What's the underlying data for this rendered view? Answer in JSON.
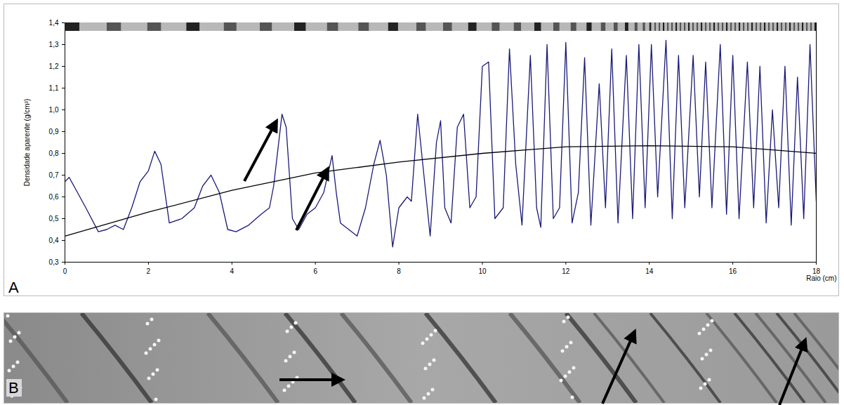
{
  "chart_data": {
    "type": "line",
    "x_label": "Raio (cm)",
    "y_label": "Densidade aparente (g/cm³)",
    "annotations": [
      {
        "text": "A"
      },
      {
        "text": "B"
      }
    ],
    "xlim": [
      0,
      18
    ],
    "xticks": [
      0,
      2,
      4,
      6,
      8,
      10,
      12,
      14,
      16,
      18
    ],
    "ylim": [
      0.3,
      1.4
    ],
    "yticks": [
      {
        "value": 0.3,
        "label": "0,3"
      },
      {
        "value": 0.4,
        "label": "0,4"
      },
      {
        "value": 0.5,
        "label": "0,5"
      },
      {
        "value": 0.6,
        "label": "0,6"
      },
      {
        "value": 0.7,
        "label": "0,7"
      },
      {
        "value": 0.8,
        "label": "0,8"
      },
      {
        "value": 0.9,
        "label": "0,9"
      },
      {
        "value": 1.0,
        "label": "1,0"
      },
      {
        "value": 1.1,
        "label": "1,1"
      },
      {
        "value": 1.2,
        "label": "1,2"
      },
      {
        "value": 1.3,
        "label": "1,3"
      },
      {
        "value": 1.4,
        "label": "1,4"
      }
    ],
    "grid": false,
    "series": [
      {
        "color": "#1a1a78",
        "line_style": "solid",
        "x": [
          0,
          0.1,
          0.3,
          0.5,
          0.8,
          1.0,
          1.2,
          1.4,
          1.6,
          1.8,
          2.0,
          2.15,
          2.3,
          2.5,
          2.8,
          3.1,
          3.3,
          3.5,
          3.7,
          3.9,
          4.1,
          4.4,
          4.7,
          4.9,
          5.0,
          5.2,
          5.3,
          5.45,
          5.6,
          5.8,
          6.0,
          6.2,
          6.4,
          6.5,
          6.6,
          6.8,
          7.0,
          7.2,
          7.4,
          7.55,
          7.7,
          7.85,
          8.0,
          8.2,
          8.3,
          8.45,
          8.6,
          8.75,
          8.9,
          9.0,
          9.1,
          9.25,
          9.4,
          9.55,
          9.7,
          9.85,
          10.0,
          10.15,
          10.3,
          10.5,
          10.65,
          10.8,
          10.95,
          11.15,
          11.3,
          11.4,
          11.55,
          11.7,
          11.85,
          12.0,
          12.15,
          12.3,
          12.45,
          12.6,
          12.8,
          12.95,
          13.1,
          13.25,
          13.45,
          13.6,
          13.75,
          13.9,
          14.05,
          14.2,
          14.4,
          14.55,
          14.7,
          14.85,
          15.05,
          15.2,
          15.35,
          15.5,
          15.7,
          15.85,
          16.0,
          16.15,
          16.35,
          16.5,
          16.65,
          16.8,
          16.95,
          17.1,
          17.25,
          17.4,
          17.55,
          17.7,
          17.85,
          18.0
        ],
        "values": [
          0.67,
          0.69,
          0.62,
          0.55,
          0.44,
          0.45,
          0.47,
          0.45,
          0.55,
          0.67,
          0.72,
          0.81,
          0.75,
          0.48,
          0.5,
          0.55,
          0.65,
          0.7,
          0.62,
          0.45,
          0.44,
          0.47,
          0.52,
          0.55,
          0.65,
          0.98,
          0.92,
          0.5,
          0.45,
          0.52,
          0.55,
          0.62,
          0.79,
          0.62,
          0.48,
          0.45,
          0.42,
          0.55,
          0.75,
          0.86,
          0.7,
          0.37,
          0.55,
          0.6,
          0.58,
          0.98,
          0.7,
          0.42,
          0.85,
          0.95,
          0.55,
          0.48,
          0.92,
          0.98,
          0.55,
          0.6,
          1.2,
          1.22,
          0.5,
          0.55,
          1.28,
          0.75,
          0.47,
          1.25,
          0.55,
          0.46,
          1.3,
          0.5,
          0.55,
          1.31,
          0.48,
          0.62,
          1.24,
          0.47,
          1.12,
          0.55,
          1.28,
          0.48,
          1.25,
          0.5,
          1.3,
          0.55,
          1.3,
          0.6,
          1.32,
          0.5,
          1.25,
          0.55,
          1.25,
          0.6,
          1.22,
          0.55,
          1.3,
          0.52,
          1.25,
          0.5,
          1.22,
          0.55,
          1.2,
          0.48,
          1.0,
          0.55,
          1.2,
          0.47,
          1.15,
          0.5,
          1.3,
          0.58
        ]
      },
      {
        "color": "#000000",
        "line_style": "solid",
        "x": [
          0,
          2,
          4,
          6,
          8,
          10,
          12,
          14,
          16,
          18
        ],
        "values": [
          0.42,
          0.53,
          0.63,
          0.71,
          0.76,
          0.8,
          0.83,
          0.835,
          0.83,
          0.8
        ]
      }
    ]
  }
}
